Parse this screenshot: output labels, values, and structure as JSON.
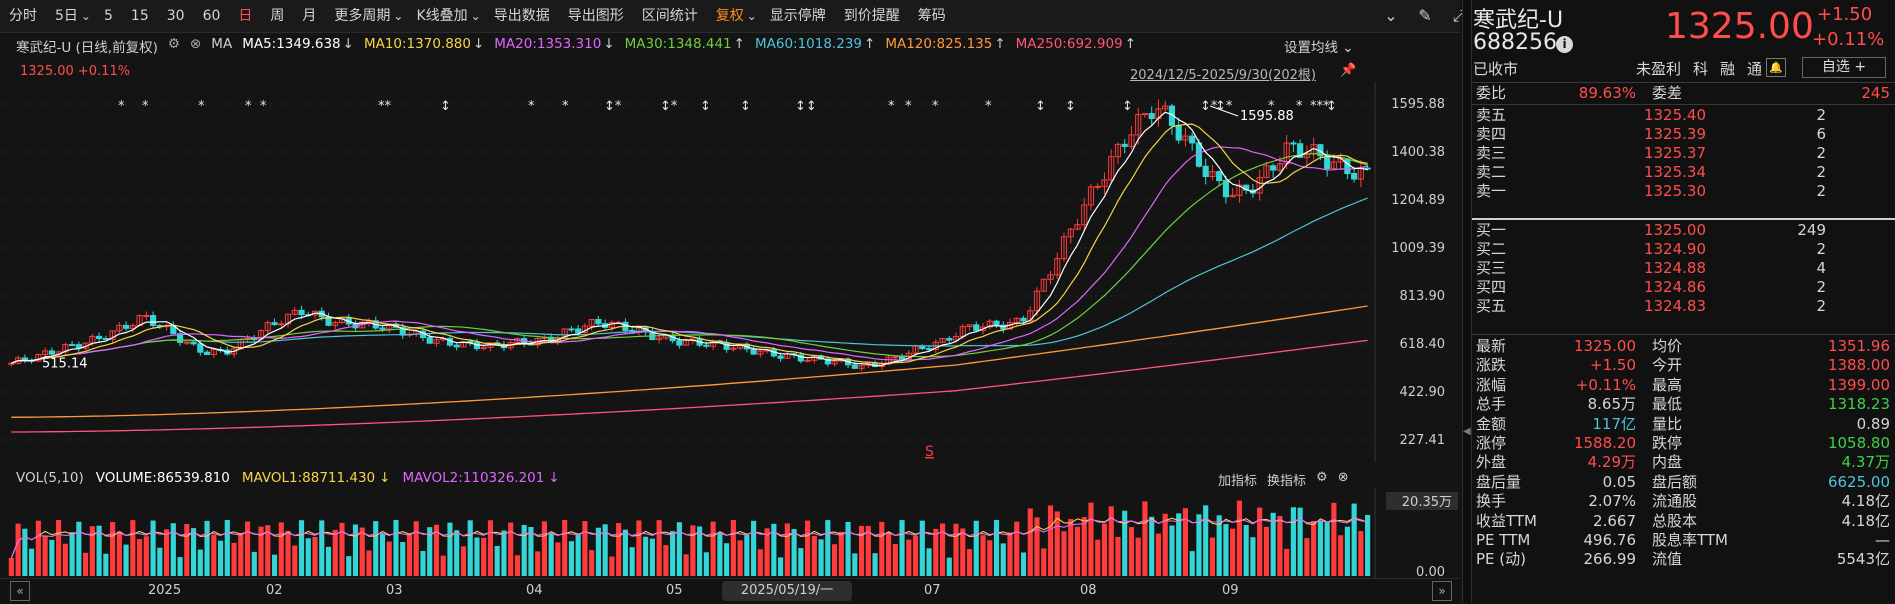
{
  "toolbar": {
    "items": [
      "分时",
      "5日",
      "5",
      "15",
      "30",
      "60",
      "日",
      "周",
      "月",
      "更多周期",
      "K线叠加",
      "导出数据",
      "导出图形",
      "区间统计",
      "复权",
      "显示停牌",
      "到价提醒",
      "筹码"
    ],
    "dropdowns": [
      false,
      true,
      false,
      false,
      false,
      false,
      false,
      false,
      false,
      true,
      true,
      false,
      false,
      false,
      true,
      false,
      false,
      false
    ],
    "active_index": 6,
    "warn_index": 14,
    "right_icons": [
      "chevron-down-circle-icon",
      "brush-icon",
      "expand-icon"
    ]
  },
  "ma": {
    "title": "寒武纪-U (日线,前复权)",
    "label": "MA",
    "items": [
      {
        "text": "MA5:1349.638",
        "arrow": "↓",
        "color": "#ffffff"
      },
      {
        "text": "MA10:1370.880",
        "arrow": "↓",
        "color": "#f5d547"
      },
      {
        "text": "MA20:1353.310",
        "arrow": "↓",
        "color": "#e066ff"
      },
      {
        "text": "MA30:1348.441",
        "arrow": "↑",
        "color": "#6fcf3c"
      },
      {
        "text": "MA60:1018.239",
        "arrow": "↑",
        "color": "#4fc3d8"
      },
      {
        "text": "MA120:825.135",
        "arrow": "↑",
        "color": "#ff9a3c"
      },
      {
        "text": "MA250:692.909",
        "arrow": "↑",
        "color": "#ff5577"
      }
    ],
    "setting": "设置均线"
  },
  "main": {
    "price_badge": "1325.00 +0.11%",
    "range": "2024/12/5-2025/9/30(202根)",
    "y_labels": [
      "1595.88",
      "1400.38",
      "1204.89",
      "1009.39",
      "813.90",
      "618.40",
      "422.90",
      "227.41"
    ],
    "peak_label": "1595.88",
    "low_label": "515.14",
    "markers": [
      "*",
      "*",
      "*",
      "*",
      "*",
      "**",
      "↕",
      "*",
      "*",
      "↕*",
      "↕*",
      "↕",
      "↕",
      "↕↕",
      "*",
      "*",
      "*",
      "*",
      "↕",
      "↕",
      "↕",
      "↕*",
      "↕*",
      "*",
      "*",
      "***",
      "↕"
    ]
  },
  "volume": {
    "head": "VOL(5,10)",
    "items": [
      {
        "text": "VOLUME:86539.810",
        "color": "#ffffff"
      },
      {
        "text": "MAVOL1:88711.430",
        "arrow": "↓",
        "color": "#f5d547"
      },
      {
        "text": "MAVOL2:110326.201",
        "arrow": "↓",
        "color": "#e066ff"
      }
    ],
    "tools": [
      "加指标",
      "换指标"
    ],
    "y_top": "20.35万",
    "y_bottom": "0.00"
  },
  "xaxis": {
    "labels": [
      "2025",
      "02",
      "03",
      "04",
      "05",
      "07",
      "08",
      "09"
    ],
    "cursor": "2025/05/19/一"
  },
  "colors": {
    "up": "#ff3b3b",
    "down": "#33d6d6",
    "bg": "#141414"
  },
  "chart_data": {
    "type": "candlestick",
    "ylim": [
      227.41,
      1595.88
    ],
    "title": "",
    "close_samples": [
      540,
      560,
      600,
      640,
      680,
      720,
      660,
      600,
      590,
      640,
      700,
      760,
      720,
      700,
      680,
      660,
      640,
      620,
      600,
      620,
      640,
      680,
      700,
      680,
      660,
      640,
      620,
      600,
      590,
      580,
      560,
      540,
      520,
      560,
      600,
      620,
      680,
      700,
      720,
      900,
      1100,
      1300,
      1500,
      1595,
      1450,
      1300,
      1240,
      1300,
      1400,
      1380,
      1350,
      1325
    ]
  },
  "quote": {
    "name": "寒武纪-U",
    "code": "688256",
    "price": "1325.00",
    "change": "+1.50",
    "pct": "+0.11%",
    "status": "已收市",
    "tags": [
      "未盈利",
      "科",
      "融",
      "通"
    ],
    "watch": "自选 +",
    "weibi": {
      "k": "委比",
      "v": "89.63%",
      "k2": "委差",
      "v2": "245"
    },
    "asks": [
      {
        "k": "卖五",
        "v": "1325.40",
        "q": "2"
      },
      {
        "k": "卖四",
        "v": "1325.39",
        "q": "6"
      },
      {
        "k": "卖三",
        "v": "1325.37",
        "q": "2"
      },
      {
        "k": "卖二",
        "v": "1325.34",
        "q": "2"
      },
      {
        "k": "卖一",
        "v": "1325.30",
        "q": "2"
      }
    ],
    "bids": [
      {
        "k": "买一",
        "v": "1325.00",
        "q": "249"
      },
      {
        "k": "买二",
        "v": "1324.90",
        "q": "2"
      },
      {
        "k": "买三",
        "v": "1324.88",
        "q": "4"
      },
      {
        "k": "买四",
        "v": "1324.86",
        "q": "2"
      },
      {
        "k": "买五",
        "v": "1324.83",
        "q": "2"
      }
    ],
    "stats": [
      {
        "k": "最新",
        "v": "1325.00",
        "c": "#ff4d4d",
        "k2": "均价",
        "v2": "1351.96",
        "c2": "#ff4d4d"
      },
      {
        "k": "涨跌",
        "v": "+1.50",
        "c": "#ff4d4d",
        "k2": "今开",
        "v2": "1388.00",
        "c2": "#ff4d4d"
      },
      {
        "k": "涨幅",
        "v": "+0.11%",
        "c": "#ff4d4d",
        "k2": "最高",
        "v2": "1399.00",
        "c2": "#ff4d4d"
      },
      {
        "k": "总手",
        "v": "8.65万",
        "c": "#d6d6d6",
        "k2": "最低",
        "v2": "1318.23",
        "c2": "#3fd04a"
      },
      {
        "k": "金额",
        "v": "117亿",
        "c": "#4fc3d8",
        "k2": "量比",
        "v2": "0.89",
        "c2": "#d6d6d6"
      },
      {
        "k": "涨停",
        "v": "1588.20",
        "c": "#ff4d4d",
        "k2": "跌停",
        "v2": "1058.80",
        "c2": "#3fd04a"
      },
      {
        "k": "外盘",
        "v": "4.29万",
        "c": "#ff4d4d",
        "k2": "内盘",
        "v2": "4.37万",
        "c2": "#3fd04a"
      },
      {
        "k": "盘后量",
        "v": "0.05",
        "c": "#d6d6d6",
        "k2": "盘后额",
        "v2": "6625.00",
        "c2": "#4fc3d8"
      },
      {
        "k": "换手",
        "v": "2.07%",
        "c": "#d6d6d6",
        "k2": "流通股",
        "v2": "4.18亿",
        "c2": "#d6d6d6"
      },
      {
        "k": "收益TTM",
        "v": "2.667",
        "c": "#d6d6d6",
        "k2": "总股本",
        "v2": "4.18亿",
        "c2": "#d6d6d6"
      },
      {
        "k": "PE TTM",
        "v": "496.76",
        "c": "#d6d6d6",
        "k2": "股息率TTM",
        "v2": "—",
        "c2": "#d6d6d6"
      },
      {
        "k": "PE (动)",
        "v": "266.99",
        "c": "#d6d6d6",
        "k2": "流值",
        "v2": "5543亿",
        "c2": "#d6d6d6"
      }
    ]
  }
}
